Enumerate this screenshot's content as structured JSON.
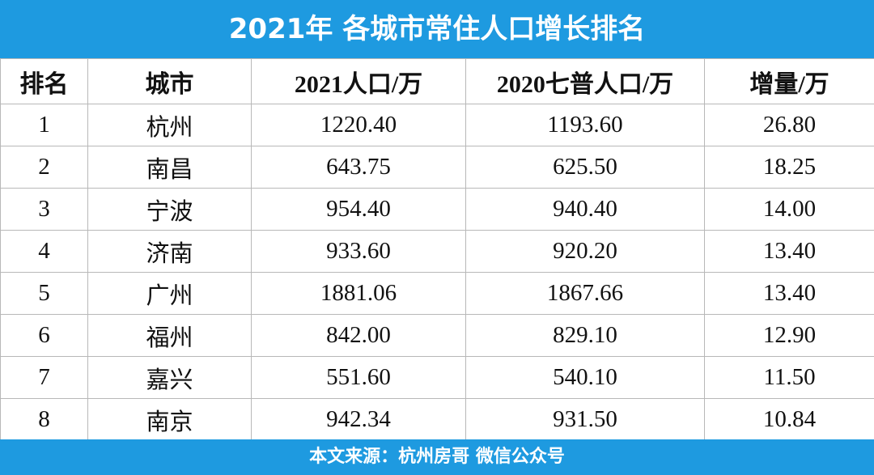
{
  "title": "2021年 各城市常住人口增长排名",
  "table": {
    "header": [
      "排名",
      "城市",
      "2021人口/万",
      "2020七普人口/万",
      "增量/万"
    ],
    "rows": [
      [
        "1",
        "杭州",
        "1220.40",
        "1193.60",
        "26.80"
      ],
      [
        "2",
        "南昌",
        "643.75",
        "625.50",
        "18.25"
      ],
      [
        "3",
        "宁波",
        "954.40",
        "940.40",
        "14.00"
      ],
      [
        "4",
        "济南",
        "933.60",
        "920.20",
        "13.40"
      ],
      [
        "5",
        "广州",
        "1881.06",
        "1867.66",
        "13.40"
      ],
      [
        "6",
        "福州",
        "842.00",
        "829.10",
        "12.90"
      ],
      [
        "7",
        "嘉兴",
        "551.60",
        "540.10",
        "11.50"
      ],
      [
        "8",
        "南京",
        "942.34",
        "931.50",
        "10.84"
      ]
    ]
  },
  "footer": "本文来源：杭州房哥 微信公众号"
}
